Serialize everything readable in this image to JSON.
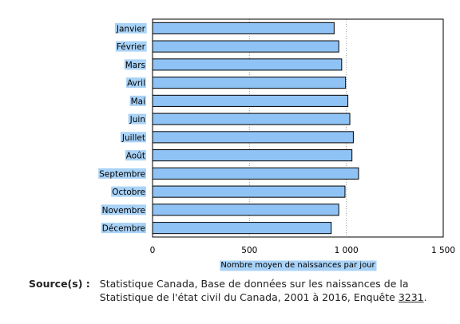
{
  "chart_data": {
    "type": "bar",
    "orientation": "horizontal",
    "categories": [
      "Janvier",
      "Février",
      "Mars",
      "Avril",
      "Mai",
      "Juin",
      "Juillet",
      "Août",
      "Septembre",
      "Octobre",
      "Novembre",
      "Décembre"
    ],
    "values": [
      937,
      961,
      976,
      996,
      1008,
      1018,
      1036,
      1029,
      1063,
      993,
      961,
      922
    ],
    "xlabel": "Nombre moyen de naissances par jour",
    "xlim": [
      0,
      1500
    ],
    "xticks": [
      0,
      500,
      1000,
      1500
    ],
    "xtick_labels": [
      "0",
      "500",
      "1 000",
      "1 500"
    ],
    "grid": "vertical",
    "bar_color": "#8fc3f5",
    "label_highlight_color": "#a9d2f7"
  },
  "source": {
    "label": "Source(s) :",
    "text": "Statistique Canada, Base de données sur les naissances de la Statistique de l'état civil du Canada, 2001 à 2016, Enquête",
    "link_text": "3231",
    "suffix": "."
  }
}
